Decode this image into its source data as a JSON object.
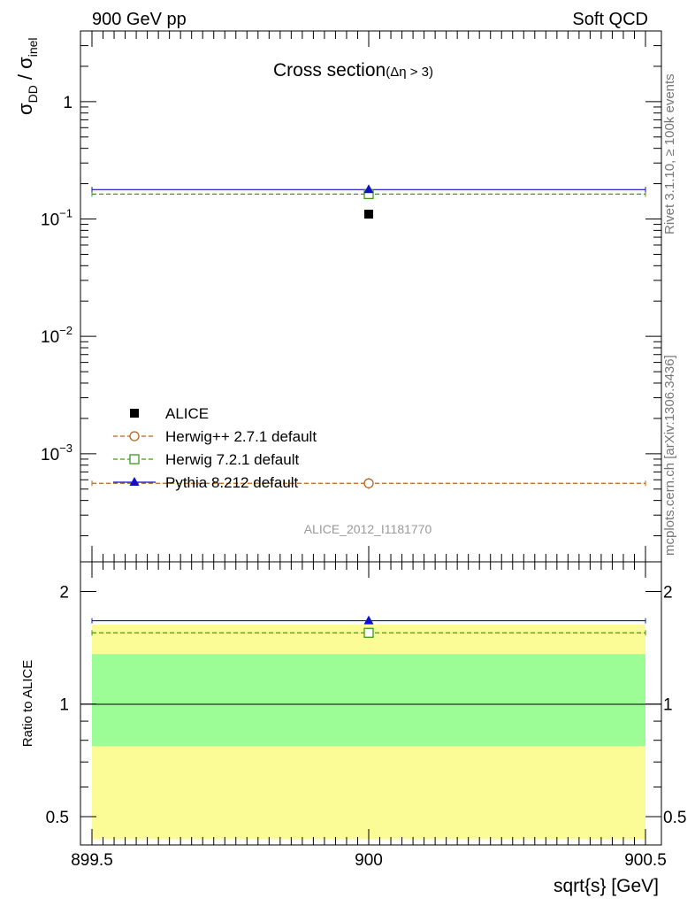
{
  "header": {
    "left": "900 GeV pp",
    "right": "Soft QCD"
  },
  "side_labels": {
    "rivet": "Rivet 3.1.10, ≥ 100k events",
    "mcplots": "mcplots.cern.ch [arXiv:1306.3436]"
  },
  "colors": {
    "alice": "#000000",
    "herwigpp": "#b5651d",
    "herwig7": "#3d9a18",
    "pythia": "#1010cc",
    "band_inner": "#9cfc96",
    "band_outer": "#fcfc96"
  },
  "chart_data": [
    {
      "type": "scatter",
      "panel": "main",
      "title": "Cross section",
      "title_sub": "(Δη > 3)",
      "ylabel_main": "σ",
      "ylabel_sub1": "DD",
      "ylabel_mid": " / σ",
      "ylabel_sub2": "inel",
      "yscale": "log",
      "ylim": [
        0.00012,
        4.0
      ],
      "xlim": [
        899.5,
        900.5
      ],
      "yticks": [
        {
          "value": 1,
          "base": "1",
          "exp": ""
        },
        {
          "value": 0.1,
          "base": "10",
          "exp": "−1"
        },
        {
          "value": 0.01,
          "base": "10",
          "exp": "−2"
        },
        {
          "value": 0.001,
          "base": "10",
          "exp": "−3"
        }
      ],
      "watermark": "ALICE_2012_I1181770",
      "legend_position": "lower-left",
      "series": [
        {
          "name": "ALICE",
          "key": "alice",
          "marker": "square-filled",
          "line": "none",
          "x": [
            900
          ],
          "y": [
            0.11
          ],
          "yerr": [
            0.006
          ]
        },
        {
          "name": "Herwig++ 2.7.1 default",
          "key": "herwigpp",
          "marker": "circle-open",
          "line": "dashed",
          "x": [
            900
          ],
          "y": [
            0.00056
          ],
          "yerr": [
            6e-05
          ]
        },
        {
          "name": "Herwig 7.2.1 default",
          "key": "herwig7",
          "marker": "square-open",
          "line": "dashed",
          "x": [
            900
          ],
          "y": [
            0.163
          ],
          "yerr": [
            0.004
          ]
        },
        {
          "name": "Pythia 8.212 default",
          "key": "pythia",
          "marker": "triangle-filled",
          "line": "solid",
          "x": [
            900
          ],
          "y": [
            0.178
          ],
          "yerr": [
            0.004
          ]
        }
      ]
    },
    {
      "type": "scatter",
      "panel": "ratio",
      "ylabel": "Ratio to ALICE",
      "xlabel": "sqrt{s} [GeV]",
      "yscale": "log",
      "ylim": [
        0.42,
        2.4
      ],
      "xlim": [
        899.5,
        900.5
      ],
      "xticks": [
        {
          "value": 899.5,
          "label": "899.5"
        },
        {
          "value": 900,
          "label": "900"
        },
        {
          "value": 900.5,
          "label": "900.5"
        }
      ],
      "yticks": [
        {
          "value": 0.5,
          "label": "0.5"
        },
        {
          "value": 1,
          "label": "1"
        },
        {
          "value": 2,
          "label": "2"
        }
      ],
      "bands": [
        {
          "name": "total uncertainty",
          "key": "band_outer",
          "low": 0.435,
          "high": 1.63
        },
        {
          "name": "stat uncertainty",
          "key": "band_inner",
          "low": 0.772,
          "high": 1.36
        }
      ],
      "series": [
        {
          "name": "Herwig 7.2.1 default",
          "key": "herwig7",
          "marker": "square-open",
          "line": "dashed",
          "x": [
            900
          ],
          "y": [
            1.55
          ]
        },
        {
          "name": "Pythia 8.212 default",
          "key": "pythia",
          "marker": "triangle-filled",
          "line": "solid",
          "x": [
            900
          ],
          "y": [
            1.67
          ]
        }
      ]
    }
  ]
}
